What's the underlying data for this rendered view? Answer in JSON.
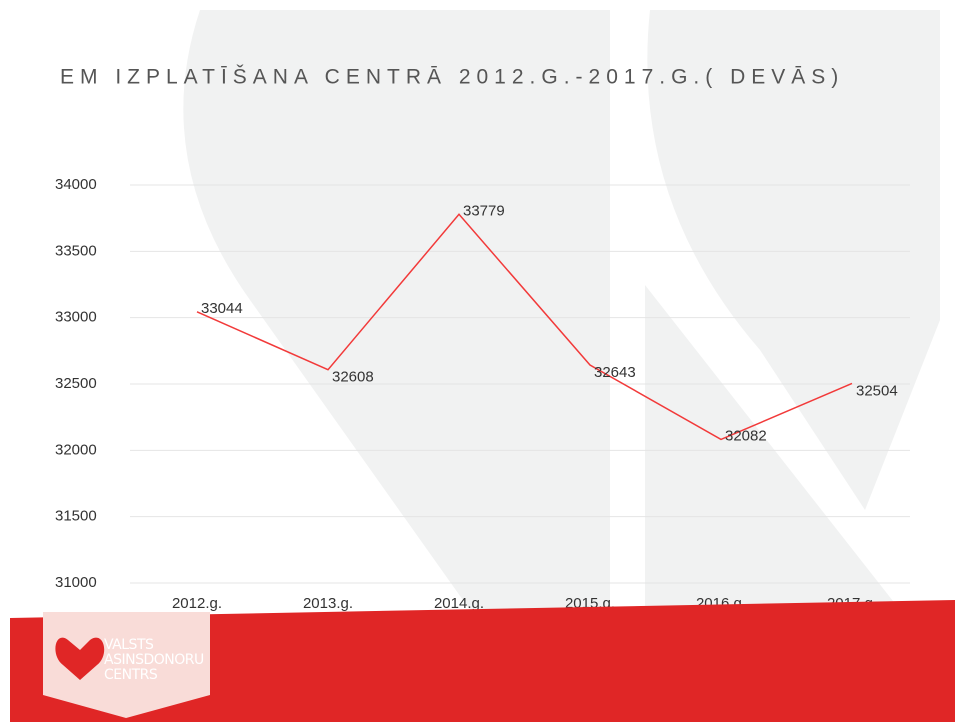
{
  "chart_data": {
    "type": "line",
    "title": "EM IZPLATĪŠANA CENTRĀ 2012.G.-2017.G.( DEVĀS)",
    "categories": [
      "2012.g.",
      "2013.g.",
      "2014.g.",
      "2015.g.",
      "2016.g.",
      "2017.g."
    ],
    "series": [
      {
        "name": "EM",
        "color": "#f23a3a",
        "values": [
          33044,
          32608,
          33779,
          32643,
          32082,
          32504
        ]
      }
    ],
    "ylim": [
      31000,
      34000
    ],
    "yticks": [
      31000,
      31500,
      32000,
      32500,
      33000,
      33500,
      34000
    ],
    "grid": true
  },
  "logo": {
    "lines": [
      "VALSTS",
      "ASINSDONORU",
      "CENTRS"
    ]
  }
}
